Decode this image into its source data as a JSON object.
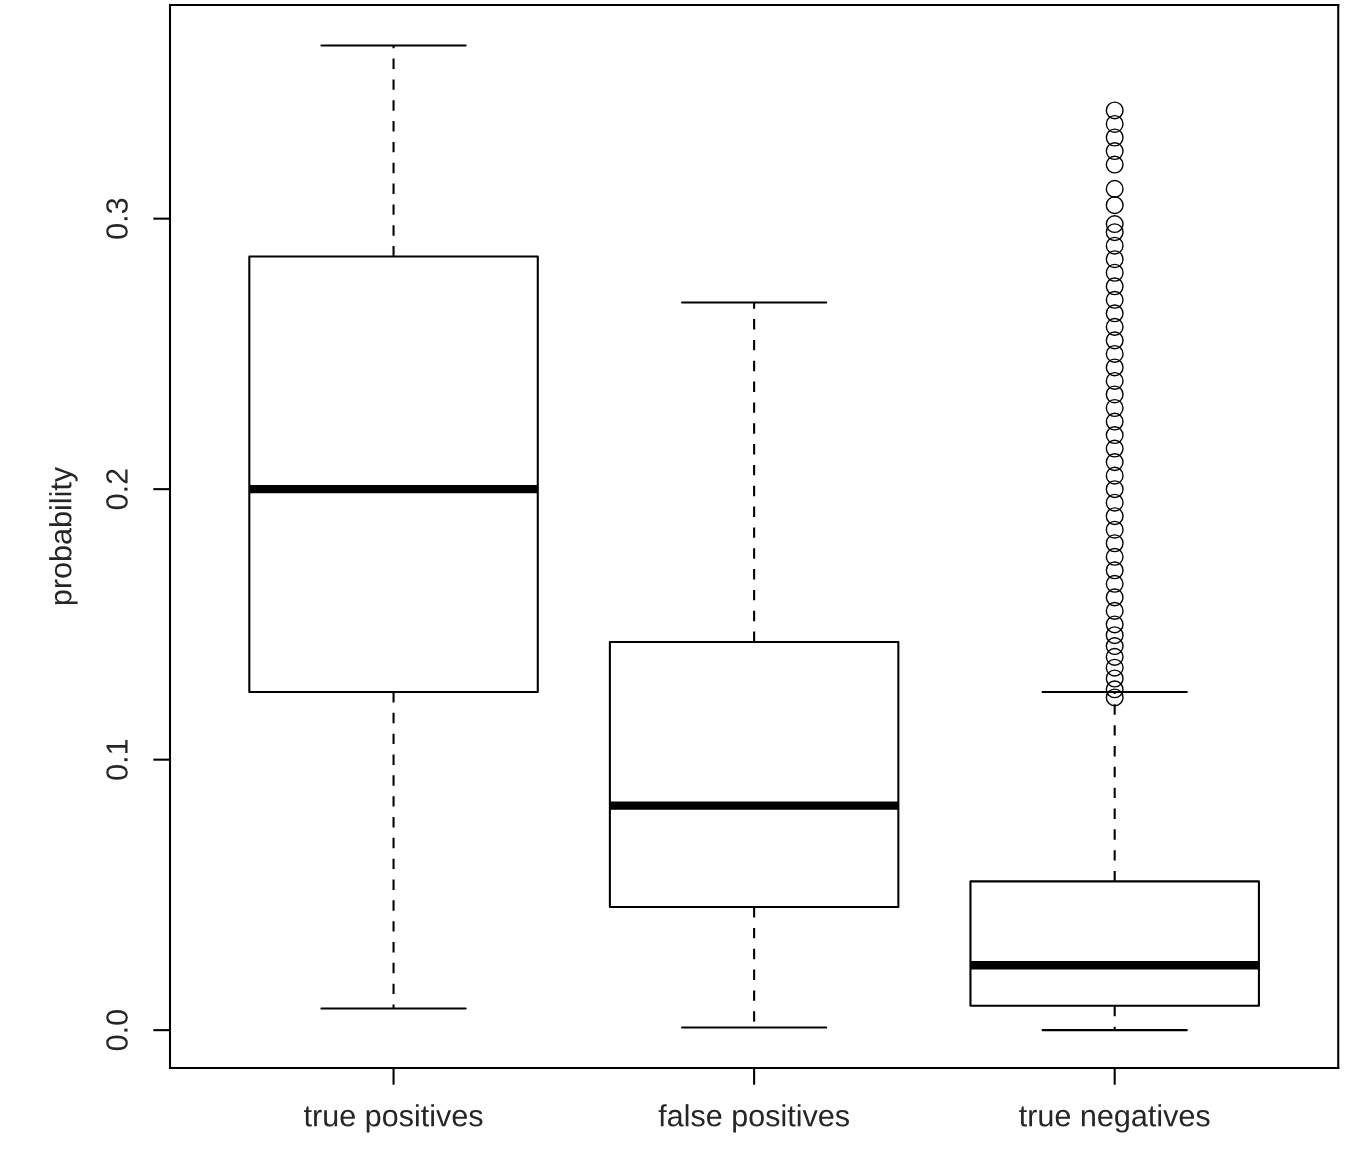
{
  "chart_data": {
    "type": "box",
    "ylabel": "probability",
    "categories": [
      "true positives",
      "false positives",
      "true negatives"
    ],
    "boxes": [
      {
        "low": 0.008,
        "q1": 0.125,
        "median": 0.2,
        "q3": 0.286,
        "high": 0.364
      },
      {
        "low": 0.001,
        "q1": 0.0455,
        "median": 0.083,
        "q3": 0.1435,
        "high": 0.269
      },
      {
        "low": 0.0,
        "q1": 0.009,
        "median": 0.024,
        "q3": 0.055,
        "high": 0.125,
        "outliers": [
          0.123,
          0.126,
          0.13,
          0.134,
          0.138,
          0.142,
          0.146,
          0.15,
          0.155,
          0.16,
          0.165,
          0.17,
          0.175,
          0.18,
          0.185,
          0.19,
          0.195,
          0.2,
          0.205,
          0.21,
          0.215,
          0.22,
          0.225,
          0.23,
          0.235,
          0.24,
          0.245,
          0.25,
          0.255,
          0.26,
          0.265,
          0.27,
          0.275,
          0.28,
          0.285,
          0.29,
          0.295,
          0.298,
          0.305,
          0.311,
          0.32,
          0.325,
          0.33,
          0.335,
          0.34
        ]
      }
    ],
    "ylim": [
      -0.014,
      0.379
    ],
    "yticks": [
      {
        "value": 0,
        "label": "0.0"
      },
      0.1,
      0.2,
      0.3
    ],
    "grid": false,
    "marker": "circle"
  }
}
